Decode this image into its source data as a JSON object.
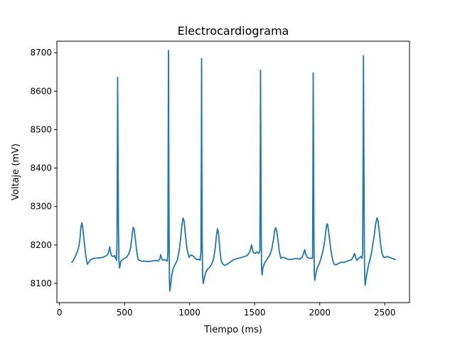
{
  "chart_data": {
    "type": "line",
    "title": "Electrocardiograma",
    "xlabel": "Tiempo (ms)",
    "ylabel": "Voltaje (mV)",
    "xlim": [
      -20,
      2690
    ],
    "ylim": [
      8050,
      8730
    ],
    "xticks": [
      0,
      500,
      1000,
      1500,
      2000,
      2500
    ],
    "yticks": [
      8100,
      8200,
      8300,
      8400,
      8500,
      8600,
      8700
    ],
    "grid": false,
    "legend": "none",
    "series": [
      {
        "color": "#1f77b4",
        "points": [
          [
            95,
            8155
          ],
          [
            110,
            8162
          ],
          [
            125,
            8172
          ],
          [
            140,
            8185
          ],
          [
            150,
            8198
          ],
          [
            158,
            8218
          ],
          [
            163,
            8240
          ],
          [
            168,
            8252
          ],
          [
            172,
            8258
          ],
          [
            178,
            8248
          ],
          [
            185,
            8225
          ],
          [
            193,
            8200
          ],
          [
            200,
            8178
          ],
          [
            208,
            8160
          ],
          [
            215,
            8150
          ],
          [
            225,
            8155
          ],
          [
            240,
            8162
          ],
          [
            260,
            8165
          ],
          [
            290,
            8166
          ],
          [
            320,
            8167
          ],
          [
            350,
            8170
          ],
          [
            370,
            8175
          ],
          [
            380,
            8185
          ],
          [
            386,
            8195
          ],
          [
            392,
            8182
          ],
          [
            400,
            8172
          ],
          [
            412,
            8170
          ],
          [
            425,
            8172
          ],
          [
            432,
            8165
          ],
          [
            438,
            8160
          ],
          [
            442,
            8210
          ],
          [
            445,
            8450
          ],
          [
            447,
            8636
          ],
          [
            450,
            8450
          ],
          [
            453,
            8250
          ],
          [
            457,
            8160
          ],
          [
            462,
            8140
          ],
          [
            472,
            8158
          ],
          [
            485,
            8162
          ],
          [
            500,
            8165
          ],
          [
            515,
            8168
          ],
          [
            530,
            8175
          ],
          [
            545,
            8190
          ],
          [
            555,
            8215
          ],
          [
            563,
            8240
          ],
          [
            568,
            8246
          ],
          [
            575,
            8238
          ],
          [
            585,
            8210
          ],
          [
            595,
            8180
          ],
          [
            605,
            8162
          ],
          [
            615,
            8160
          ],
          [
            630,
            8158
          ],
          [
            650,
            8158
          ],
          [
            680,
            8157
          ],
          [
            710,
            8158
          ],
          [
            740,
            8160
          ],
          [
            760,
            8158
          ],
          [
            772,
            8165
          ],
          [
            778,
            8175
          ],
          [
            784,
            8165
          ],
          [
            795,
            8160
          ],
          [
            808,
            8162
          ],
          [
            820,
            8160
          ],
          [
            828,
            8158
          ],
          [
            833,
            8180
          ],
          [
            835,
            8400
          ],
          [
            838,
            8706
          ],
          [
            840,
            8450
          ],
          [
            842,
            8250
          ],
          [
            845,
            8110
          ],
          [
            848,
            8080
          ],
          [
            853,
            8092
          ],
          [
            862,
            8120
          ],
          [
            875,
            8140
          ],
          [
            890,
            8150
          ],
          [
            905,
            8160
          ],
          [
            920,
            8185
          ],
          [
            932,
            8220
          ],
          [
            942,
            8255
          ],
          [
            950,
            8270
          ],
          [
            958,
            8262
          ],
          [
            968,
            8225
          ],
          [
            980,
            8190
          ],
          [
            995,
            8168
          ],
          [
            1010,
            8174
          ],
          [
            1025,
            8172
          ],
          [
            1040,
            8166
          ],
          [
            1055,
            8162
          ],
          [
            1070,
            8163
          ],
          [
            1080,
            8160
          ],
          [
            1087,
            8180
          ],
          [
            1090,
            8400
          ],
          [
            1092,
            8685
          ],
          [
            1094,
            8450
          ],
          [
            1096,
            8230
          ],
          [
            1100,
            8120
          ],
          [
            1105,
            8100
          ],
          [
            1112,
            8112
          ],
          [
            1125,
            8130
          ],
          [
            1140,
            8138
          ],
          [
            1155,
            8142
          ],
          [
            1170,
            8150
          ],
          [
            1185,
            8165
          ],
          [
            1198,
            8195
          ],
          [
            1208,
            8230
          ],
          [
            1215,
            8242
          ],
          [
            1222,
            8230
          ],
          [
            1232,
            8190
          ],
          [
            1242,
            8160
          ],
          [
            1255,
            8150
          ],
          [
            1270,
            8147
          ],
          [
            1290,
            8150
          ],
          [
            1310,
            8155
          ],
          [
            1330,
            8160
          ],
          [
            1350,
            8163
          ],
          [
            1370,
            8165
          ],
          [
            1395,
            8167
          ],
          [
            1420,
            8170
          ],
          [
            1440,
            8172
          ],
          [
            1460,
            8180
          ],
          [
            1470,
            8192
          ],
          [
            1476,
            8200
          ],
          [
            1482,
            8190
          ],
          [
            1490,
            8180
          ],
          [
            1505,
            8178
          ],
          [
            1520,
            8182
          ],
          [
            1532,
            8178
          ],
          [
            1540,
            8185
          ],
          [
            1543,
            8400
          ],
          [
            1545,
            8655
          ],
          [
            1548,
            8450
          ],
          [
            1550,
            8250
          ],
          [
            1553,
            8140
          ],
          [
            1557,
            8122
          ],
          [
            1563,
            8140
          ],
          [
            1575,
            8152
          ],
          [
            1590,
            8160
          ],
          [
            1605,
            8168
          ],
          [
            1618,
            8175
          ],
          [
            1632,
            8190
          ],
          [
            1645,
            8215
          ],
          [
            1655,
            8240
          ],
          [
            1662,
            8245
          ],
          [
            1670,
            8235
          ],
          [
            1680,
            8210
          ],
          [
            1690,
            8182
          ],
          [
            1702,
            8165
          ],
          [
            1715,
            8168
          ],
          [
            1735,
            8166
          ],
          [
            1760,
            8162
          ],
          [
            1790,
            8163
          ],
          [
            1820,
            8165
          ],
          [
            1845,
            8163
          ],
          [
            1865,
            8168
          ],
          [
            1878,
            8180
          ],
          [
            1885,
            8188
          ],
          [
            1892,
            8176
          ],
          [
            1905,
            8168
          ],
          [
            1920,
            8165
          ],
          [
            1935,
            8166
          ],
          [
            1945,
            8165
          ],
          [
            1948,
            8400
          ],
          [
            1950,
            8648
          ],
          [
            1953,
            8450
          ],
          [
            1955,
            8250
          ],
          [
            1958,
            8130
          ],
          [
            1962,
            8108
          ],
          [
            1968,
            8122
          ],
          [
            1980,
            8140
          ],
          [
            1995,
            8150
          ],
          [
            2010,
            8165
          ],
          [
            2025,
            8185
          ],
          [
            2038,
            8210
          ],
          [
            2048,
            8240
          ],
          [
            2055,
            8255
          ],
          [
            2062,
            8252
          ],
          [
            2072,
            8225
          ],
          [
            2085,
            8188
          ],
          [
            2098,
            8163
          ],
          [
            2110,
            8150
          ],
          [
            2125,
            8148
          ],
          [
            2145,
            8152
          ],
          [
            2165,
            8155
          ],
          [
            2190,
            8155
          ],
          [
            2210,
            8158
          ],
          [
            2230,
            8160
          ],
          [
            2245,
            8162
          ],
          [
            2258,
            8170
          ],
          [
            2268,
            8178
          ],
          [
            2275,
            8168
          ],
          [
            2285,
            8160
          ],
          [
            2300,
            8165
          ],
          [
            2315,
            8170
          ],
          [
            2325,
            8165
          ],
          [
            2330,
            8180
          ],
          [
            2333,
            8400
          ],
          [
            2336,
            8692
          ],
          [
            2339,
            8450
          ],
          [
            2342,
            8250
          ],
          [
            2345,
            8130
          ],
          [
            2349,
            8095
          ],
          [
            2355,
            8110
          ],
          [
            2365,
            8130
          ],
          [
            2375,
            8148
          ],
          [
            2385,
            8160
          ],
          [
            2395,
            8175
          ],
          [
            2405,
            8195
          ],
          [
            2418,
            8222
          ],
          [
            2430,
            8255
          ],
          [
            2440,
            8270
          ],
          [
            2447,
            8265
          ],
          [
            2457,
            8238
          ],
          [
            2467,
            8205
          ],
          [
            2478,
            8180
          ],
          [
            2490,
            8168
          ],
          [
            2505,
            8168
          ],
          [
            2520,
            8170
          ],
          [
            2535,
            8168
          ],
          [
            2550,
            8166
          ],
          [
            2565,
            8164
          ],
          [
            2580,
            8162
          ]
        ]
      }
    ]
  }
}
